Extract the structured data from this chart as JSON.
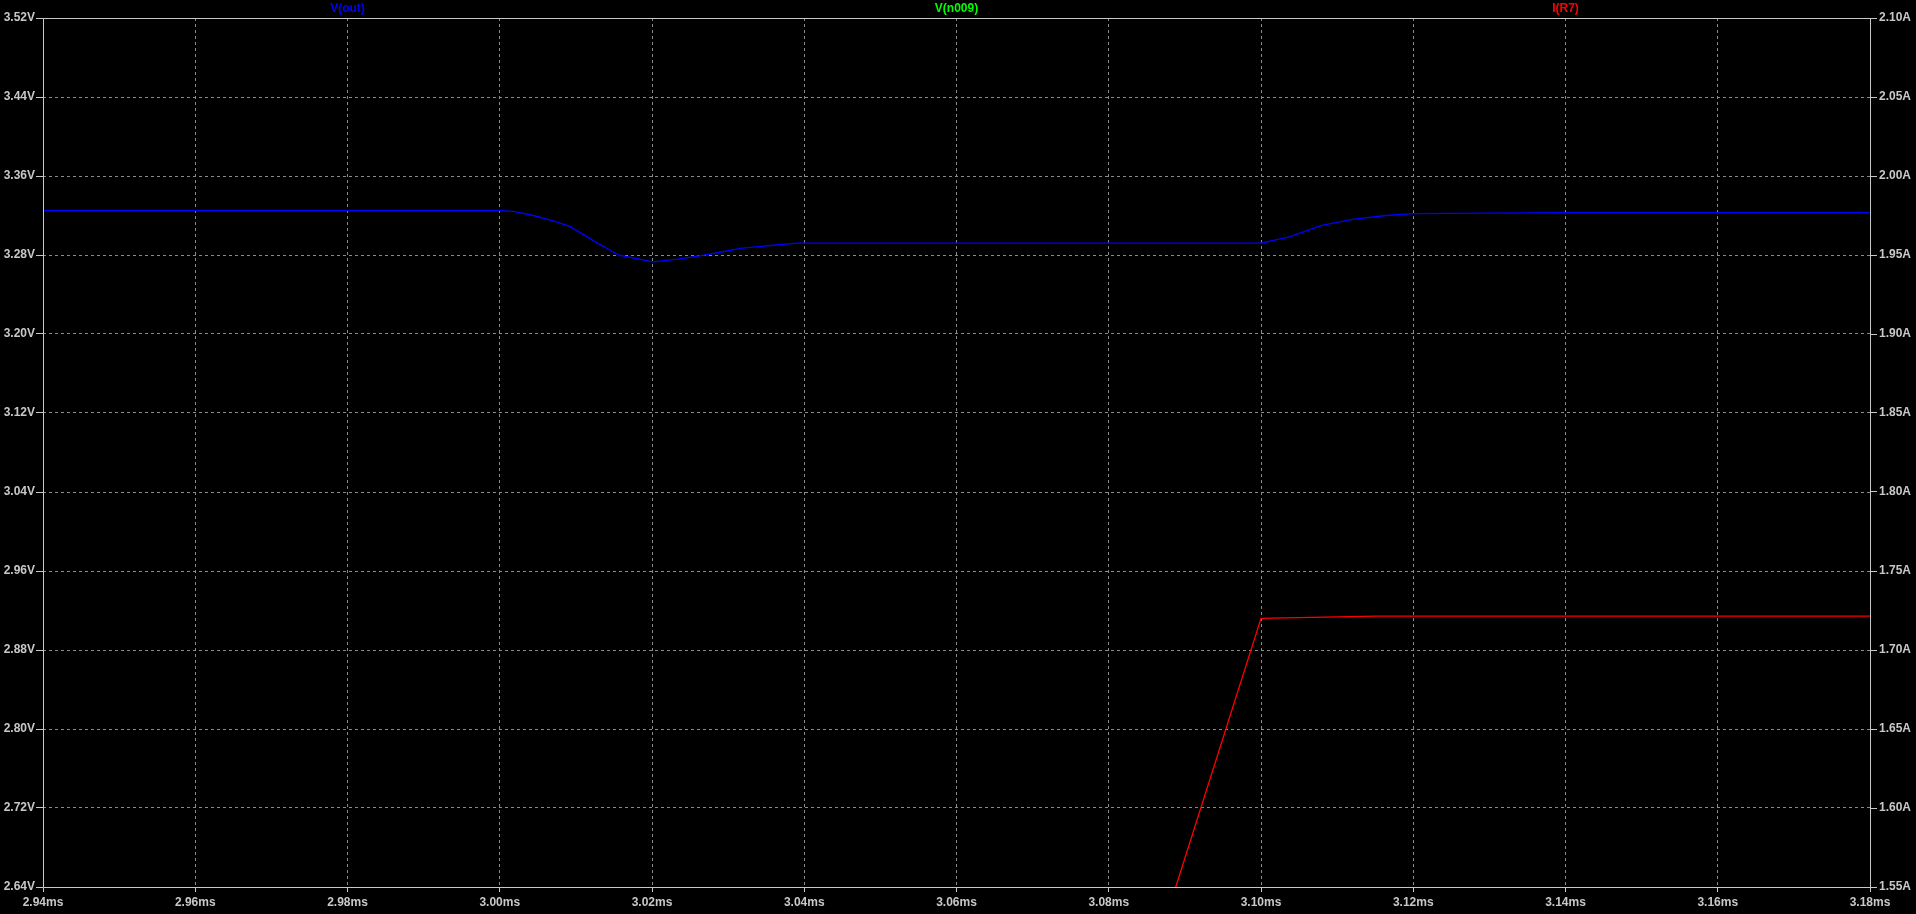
{
  "chart_data": {
    "type": "line",
    "legend": "top",
    "grid": true,
    "marker": "none",
    "line_style": "solid",
    "xlim": [
      2.94,
      3.18
    ],
    "xticks": [
      {
        "value": 2.94,
        "label": "2.94ms"
      },
      {
        "value": 2.96,
        "label": "2.96ms"
      },
      {
        "value": 2.98,
        "label": "2.98ms"
      },
      {
        "value": 3.0,
        "label": "3.00ms"
      },
      {
        "value": 3.02,
        "label": "3.02ms"
      },
      {
        "value": 3.04,
        "label": "3.04ms"
      },
      {
        "value": 3.06,
        "label": "3.06ms"
      },
      {
        "value": 3.08,
        "label": "3.08ms"
      },
      {
        "value": 3.1,
        "label": "3.10ms"
      },
      {
        "value": 3.12,
        "label": "3.12ms"
      },
      {
        "value": 3.14,
        "label": "3.14ms"
      },
      {
        "value": 3.16,
        "label": "3.16ms"
      },
      {
        "value": 3.18,
        "label": "3.18ms"
      }
    ],
    "ylim": [
      2.64,
      3.52
    ],
    "yticks": [
      {
        "value": 2.64,
        "label": "2.64V"
      },
      {
        "value": 2.72,
        "label": "2.72V"
      },
      {
        "value": 2.8,
        "label": "2.80V"
      },
      {
        "value": 2.88,
        "label": "2.88V"
      },
      {
        "value": 2.96,
        "label": "2.96V"
      },
      {
        "value": 3.04,
        "label": "3.04V"
      },
      {
        "value": 3.12,
        "label": "3.12V"
      },
      {
        "value": 3.2,
        "label": "3.20V"
      },
      {
        "value": 3.28,
        "label": "3.28V"
      },
      {
        "value": 3.36,
        "label": "3.36V"
      },
      {
        "value": 3.44,
        "label": "3.44V"
      },
      {
        "value": 3.52,
        "label": "3.52V"
      }
    ],
    "y2lim": [
      1.55,
      2.1
    ],
    "y2ticks": [
      {
        "value": 1.55,
        "label": "1.55A"
      },
      {
        "value": 1.6,
        "label": "1.60A"
      },
      {
        "value": 1.65,
        "label": "1.65A"
      },
      {
        "value": 1.7,
        "label": "1.70A"
      },
      {
        "value": 1.75,
        "label": "1.75A"
      },
      {
        "value": 1.8,
        "label": "1.80A"
      },
      {
        "value": 1.85,
        "label": "1.85A"
      },
      {
        "value": 1.9,
        "label": "1.90A"
      },
      {
        "value": 1.95,
        "label": "1.95A"
      },
      {
        "value": 2.0,
        "label": "2.00A"
      },
      {
        "value": 2.05,
        "label": "2.05A"
      },
      {
        "value": 2.1,
        "label": "2.10A"
      }
    ],
    "series": [
      {
        "name": "V(out)",
        "color": "#0000ff",
        "x": [
          2.94,
          2.96,
          2.98,
          3.0,
          3.002,
          3.0044,
          3.0068,
          3.0092,
          3.0124,
          3.0156,
          3.0201,
          3.0237,
          3.0277,
          3.0318,
          3.039,
          3.06,
          3.08,
          3.1,
          3.1036,
          3.108,
          3.112,
          3.1164,
          3.12,
          3.14,
          3.16,
          3.18
        ],
        "values": [
          3.325,
          3.325,
          3.325,
          3.325,
          3.324,
          3.32,
          3.315,
          3.309,
          3.294,
          3.28,
          3.273,
          3.276,
          3.281,
          3.287,
          3.292,
          3.292,
          3.292,
          3.292,
          3.298,
          3.31,
          3.316,
          3.32,
          3.322,
          3.323,
          3.323,
          3.323
        ]
      },
      {
        "name": "V(n009)",
        "color": "#00ff00"
      },
      {
        "name": "I(R7)",
        "color": "#ff0000",
        "axis": "y2",
        "x": [
          3.0888,
          3.1,
          3.105,
          3.115,
          3.14,
          3.18
        ],
        "values": [
          1.55,
          1.72,
          1.7205,
          1.7215,
          1.7215,
          1.7215
        ]
      }
    ]
  }
}
